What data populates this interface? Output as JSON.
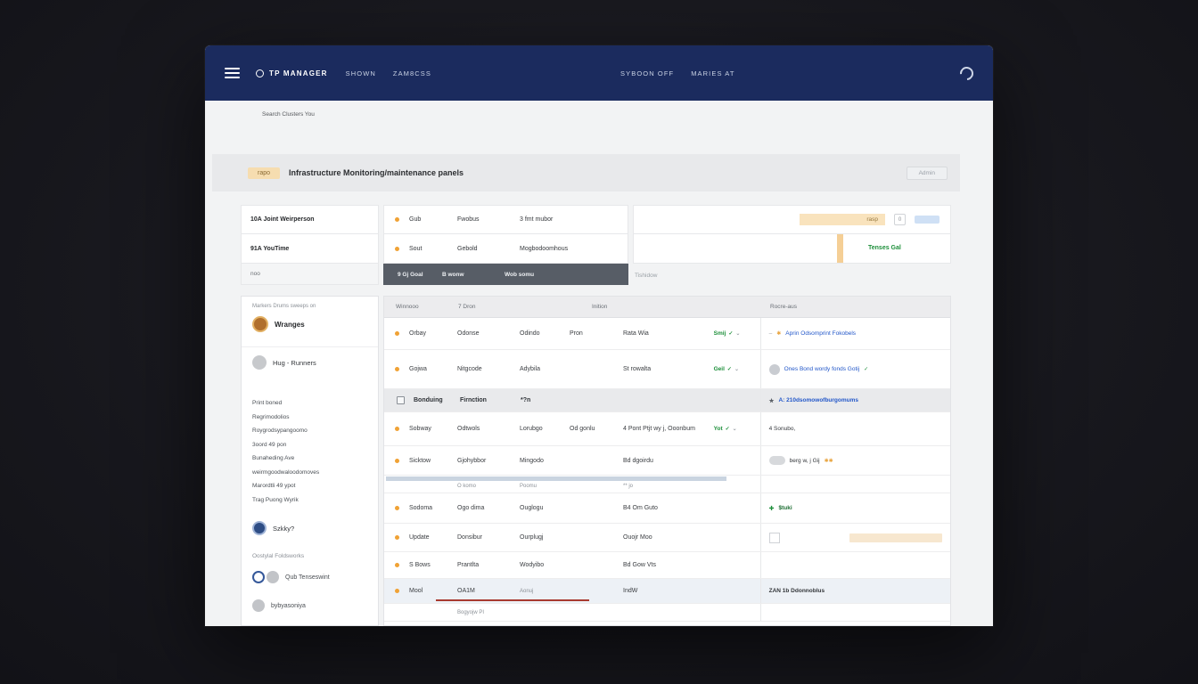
{
  "colors": {
    "navbar": "#1b2b5e",
    "accent_orange": "#f0a235",
    "success_green": "#1d8f3a",
    "link_blue": "#2257c9",
    "badge_tan": "#f6ddb0",
    "danger_red": "#a83a30",
    "selected_row": "#edf1f6"
  },
  "navbar": {
    "logo": "TP MANAGER",
    "items": [
      "SHOWN",
      "ZAM8CSS"
    ],
    "right_items": [
      "SYBOON OFF",
      "MARIES AT"
    ]
  },
  "breadcrumb": "Search Clusters You",
  "page_header": {
    "badge": "rapo",
    "title": "Infrastructure Monitoring/maintenance panels",
    "action_label": "Admin"
  },
  "summary": {
    "left_items": [
      "10A Joint Weirperson",
      "91A YouTime",
      "noo"
    ],
    "middle_rows": [
      {
        "c1": "Gub",
        "c2": "Fwobus",
        "c3": "3 fmt mubor"
      },
      {
        "c1": "Sout",
        "c2": "Gebold",
        "c3": "Mogbodoomhous"
      }
    ],
    "middle_footer": {
      "c1": "9 Gj Goal",
      "c2": "B wonw",
      "c3": "Wob somu"
    },
    "right": {
      "chip_label": "rasp",
      "toggle_value": "0",
      "link_label": "Tenses Gal",
      "note": "Tishidow"
    }
  },
  "sidebar": {
    "caption": "Markers Drums sweeps on",
    "user1": "Wranges",
    "user2": "Hug - Runners",
    "links": [
      "Print boned",
      "Regrimodolios",
      "Roygrodsypangoomo",
      "3oord 49 pon",
      "Bunaheding Ave",
      "weirmgoodwaloodomoves",
      "Marordtli 49 ypot",
      "Trag Puong Wyrik"
    ],
    "user3": "Szkky?",
    "section_label": "Oostylal Foldsworks",
    "user4": "Qub Tenseswint",
    "user5": "bybyasoniya"
  },
  "table": {
    "headers": {
      "h1": "Winnooo",
      "h2": "7 Dron",
      "h3": "Inition",
      "h4": "Rocre-aus"
    },
    "rows": [
      {
        "c1": "Orbay",
        "c2": "Odonse",
        "c3": "Odindo",
        "c4": "Pron",
        "c5": "Rata Wia",
        "badge": "Smij",
        "right": "Aprin Odsomprint Fokobels"
      },
      {
        "c1": "Gojwa",
        "c2": "Nitgcode",
        "c3": "Adybila",
        "c5": "St rowalta",
        "badge": "Geil",
        "right": "Ones Bond wordy fonds Gotij"
      },
      {
        "t1": "Bonduing",
        "t2": "Firnction",
        "t3": "*?n",
        "right": "A: 210dsomowofburgomums"
      },
      {
        "c1": "Sobway",
        "c2": "Odtwols",
        "c3": "Lorubgo",
        "c4": "Od gonlu",
        "c5": "4 Pont Ptjt wy j, Ooonbum",
        "badge": "Yot",
        "right": "4 Sonubo,"
      },
      {
        "c1": "Sicktow",
        "c2": "Gjohybbor",
        "c3": "Mingodo",
        "c5": "Bd dgoirdu",
        "right": "berg w, j Gij"
      },
      {
        "c2": "O komo",
        "c3": "Poomu",
        "c5": "** jo"
      },
      {
        "c1": "Sodoma",
        "c2": "Ogo dima",
        "c3": "Ouglogu",
        "c5": "B4 Om Guto",
        "right": "$tuki"
      },
      {
        "c1": "Update",
        "c2": "Donsibur",
        "c3": "Ourplugj",
        "c5": "Ouojr Moo"
      },
      {
        "c1": "S Bows",
        "c2": "Prantlta",
        "c3": "Wodyibo",
        "c5": "Bd Gow Vts"
      },
      {
        "c1": "Mool",
        "c2": "OA1M",
        "c3": "Aonuj",
        "c5": "IndW",
        "right": "ZAN 1b Ddonnoblus"
      },
      {
        "c2": "Bogyojw PI"
      }
    ]
  }
}
